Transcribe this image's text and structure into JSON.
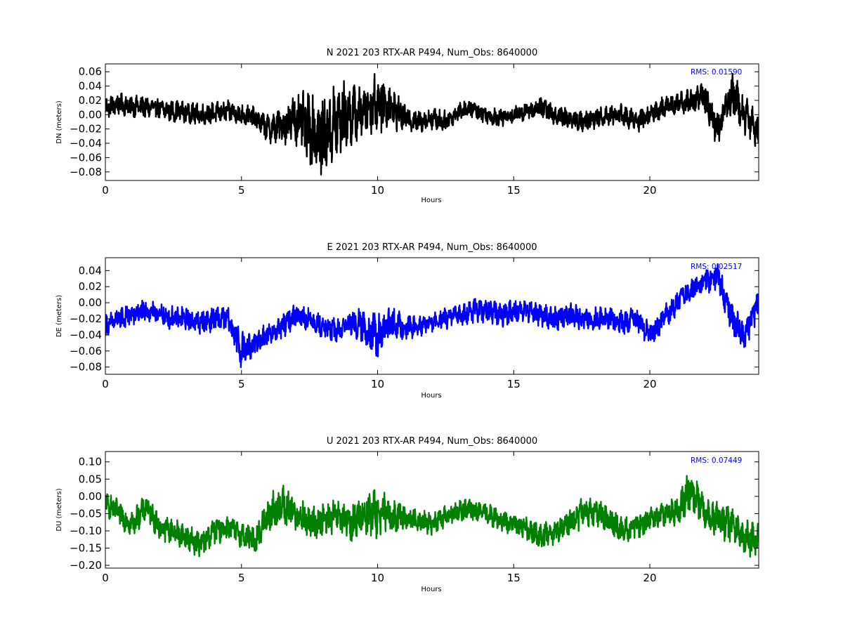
{
  "chart_data": [
    {
      "type": "line",
      "title": "N 2021 203 RTX-AR  P494, Num_Obs: 8640000",
      "xlabel": "Hours",
      "ylabel": "DN (meters)",
      "xlim": [
        0,
        24
      ],
      "ylim": [
        -0.092,
        0.071
      ],
      "xticks": [
        0,
        5,
        10,
        15,
        20
      ],
      "yticks": [
        -0.08,
        -0.06,
        -0.04,
        -0.02,
        0.0,
        0.02,
        0.04,
        0.06
      ],
      "ytick_labels": [
        "−0.08",
        "−0.06",
        "−0.04",
        "−0.02",
        "0.00",
        "0.02",
        "0.04",
        "0.06"
      ],
      "annotation": "RMS:  0.01590",
      "annotation_color": "#0000ff",
      "series": [
        {
          "color": "#000000",
          "x": [
            0,
            0.5,
            1,
            1.5,
            2,
            2.5,
            3,
            3.5,
            4,
            4.5,
            5,
            5.5,
            6,
            6.5,
            7,
            7.5,
            8,
            8.5,
            9,
            9.5,
            10,
            10.5,
            11,
            11.5,
            12,
            12.5,
            13,
            13.5,
            14,
            14.5,
            15,
            15.5,
            16,
            16.5,
            17,
            17.5,
            18,
            18.5,
            19,
            19.5,
            20,
            20.5,
            21,
            21.5,
            22,
            22.5,
            23,
            23.5,
            24
          ],
          "y": [
            0.01,
            0.015,
            0.012,
            0.01,
            0.008,
            0.005,
            0.003,
            0.0,
            0.002,
            0.005,
            0.0,
            -0.005,
            -0.02,
            -0.015,
            -0.005,
            -0.02,
            -0.03,
            -0.01,
            0.0,
            0.005,
            0.02,
            0.01,
            -0.005,
            -0.01,
            -0.005,
            -0.01,
            0.005,
            0.008,
            0.0,
            -0.005,
            0.0,
            0.005,
            0.01,
            0.0,
            -0.005,
            -0.01,
            -0.005,
            0.0,
            0.0,
            -0.01,
            0.0,
            0.01,
            0.015,
            0.02,
            0.025,
            -0.02,
            0.03,
            0.0,
            -0.025
          ],
          "band": [
            0.012,
            0.012,
            0.012,
            0.012,
            0.012,
            0.012,
            0.012,
            0.012,
            0.012,
            0.012,
            0.012,
            0.012,
            0.015,
            0.02,
            0.03,
            0.04,
            0.045,
            0.045,
            0.035,
            0.025,
            0.035,
            0.025,
            0.015,
            0.012,
            0.012,
            0.012,
            0.01,
            0.01,
            0.01,
            0.01,
            0.01,
            0.01,
            0.012,
            0.012,
            0.012,
            0.012,
            0.012,
            0.012,
            0.012,
            0.012,
            0.012,
            0.012,
            0.012,
            0.015,
            0.018,
            0.022,
            0.025,
            0.022,
            0.018
          ]
        }
      ]
    },
    {
      "type": "line",
      "title": "E 2021 203 RTX-AR  P494, Num_Obs: 8640000",
      "xlabel": "Hours",
      "ylabel": "DE (meters)",
      "xlim": [
        0,
        24
      ],
      "ylim": [
        -0.089,
        0.056
      ],
      "xticks": [
        0,
        5,
        10,
        15,
        20
      ],
      "yticks": [
        -0.08,
        -0.06,
        -0.04,
        -0.02,
        0.0,
        0.02,
        0.04
      ],
      "ytick_labels": [
        "−0.08",
        "−0.06",
        "−0.04",
        "−0.02",
        "0.00",
        "0.02",
        "0.04"
      ],
      "annotation": "RMS:  0.02517",
      "annotation_color": "#0000ff",
      "series": [
        {
          "color": "#0000ff",
          "x": [
            0,
            0.5,
            1,
            1.5,
            2,
            2.5,
            3,
            3.5,
            4,
            4.5,
            5,
            5.5,
            6,
            6.5,
            7,
            7.5,
            8,
            8.5,
            9,
            9.5,
            10,
            10.5,
            11,
            11.5,
            12,
            12.5,
            13,
            13.5,
            14,
            14.5,
            15,
            15.5,
            16,
            16.5,
            17,
            17.5,
            18,
            18.5,
            19,
            19.5,
            20,
            20.5,
            21,
            21.5,
            22,
            22.5,
            23,
            23.5,
            24
          ],
          "y": [
            -0.03,
            -0.02,
            -0.015,
            -0.01,
            -0.015,
            -0.02,
            -0.02,
            -0.025,
            -0.02,
            -0.02,
            -0.06,
            -0.05,
            -0.04,
            -0.03,
            -0.015,
            -0.02,
            -0.03,
            -0.035,
            -0.025,
            -0.03,
            -0.045,
            -0.025,
            -0.03,
            -0.03,
            -0.025,
            -0.02,
            -0.015,
            -0.01,
            -0.01,
            -0.015,
            -0.01,
            -0.01,
            -0.015,
            -0.02,
            -0.015,
            -0.02,
            -0.02,
            -0.02,
            -0.025,
            -0.02,
            -0.04,
            -0.02,
            0.0,
            0.015,
            0.025,
            0.035,
            -0.02,
            -0.04,
            0.0
          ],
          "band": [
            0.012,
            0.012,
            0.012,
            0.012,
            0.012,
            0.012,
            0.012,
            0.012,
            0.012,
            0.012,
            0.018,
            0.015,
            0.012,
            0.012,
            0.012,
            0.012,
            0.012,
            0.012,
            0.012,
            0.018,
            0.025,
            0.015,
            0.012,
            0.01,
            0.01,
            0.01,
            0.01,
            0.012,
            0.012,
            0.012,
            0.012,
            0.012,
            0.012,
            0.012,
            0.012,
            0.012,
            0.012,
            0.012,
            0.012,
            0.012,
            0.012,
            0.012,
            0.012,
            0.012,
            0.012,
            0.014,
            0.016,
            0.016,
            0.016
          ]
        }
      ]
    },
    {
      "type": "line",
      "title": "U 2021 203 RTX-AR  P494, Num_Obs: 8640000",
      "xlabel": "Hours",
      "ylabel": "DU (meters)",
      "xlim": [
        0,
        24
      ],
      "ylim": [
        -0.208,
        0.13
      ],
      "xticks": [
        0,
        5,
        10,
        15,
        20
      ],
      "yticks": [
        -0.2,
        -0.15,
        -0.1,
        -0.05,
        0.0,
        0.05,
        0.1
      ],
      "ytick_labels": [
        "−0.20",
        "−0.15",
        "−0.10",
        "−0.05",
        "0.00",
        "0.05",
        "0.10"
      ],
      "annotation": "RMS:  0.07449",
      "annotation_color": "#0000ff",
      "series": [
        {
          "color": "#008000",
          "x": [
            0,
            0.5,
            1,
            1.5,
            2,
            2.5,
            3,
            3.5,
            4,
            4.5,
            5,
            5.5,
            6,
            6.5,
            7,
            7.5,
            8,
            8.5,
            9,
            9.5,
            10,
            10.5,
            11,
            11.5,
            12,
            12.5,
            13,
            13.5,
            14,
            14.5,
            15,
            15.5,
            16,
            16.5,
            17,
            17.5,
            18,
            18.5,
            19,
            19.5,
            20,
            20.5,
            21,
            21.5,
            22,
            22.5,
            23,
            23.5,
            24
          ],
          "y": [
            -0.02,
            -0.05,
            -0.08,
            -0.03,
            -0.09,
            -0.1,
            -0.12,
            -0.14,
            -0.1,
            -0.09,
            -0.11,
            -0.13,
            -0.05,
            -0.03,
            -0.05,
            -0.08,
            -0.07,
            -0.06,
            -0.08,
            -0.05,
            -0.05,
            -0.06,
            -0.06,
            -0.07,
            -0.08,
            -0.06,
            -0.04,
            -0.04,
            -0.05,
            -0.07,
            -0.08,
            -0.09,
            -0.12,
            -0.1,
            -0.08,
            -0.05,
            -0.04,
            -0.07,
            -0.1,
            -0.09,
            -0.07,
            -0.05,
            -0.04,
            0.02,
            -0.04,
            -0.07,
            -0.08,
            -0.12,
            -0.13
          ],
          "band": [
            0.03,
            0.03,
            0.03,
            0.03,
            0.03,
            0.03,
            0.03,
            0.03,
            0.03,
            0.03,
            0.03,
            0.03,
            0.045,
            0.05,
            0.045,
            0.04,
            0.04,
            0.04,
            0.04,
            0.05,
            0.06,
            0.04,
            0.03,
            0.025,
            0.025,
            0.025,
            0.025,
            0.025,
            0.025,
            0.025,
            0.025,
            0.03,
            0.03,
            0.03,
            0.03,
            0.035,
            0.035,
            0.03,
            0.03,
            0.03,
            0.03,
            0.03,
            0.035,
            0.045,
            0.04,
            0.045,
            0.045,
            0.04,
            0.04
          ]
        }
      ]
    }
  ]
}
